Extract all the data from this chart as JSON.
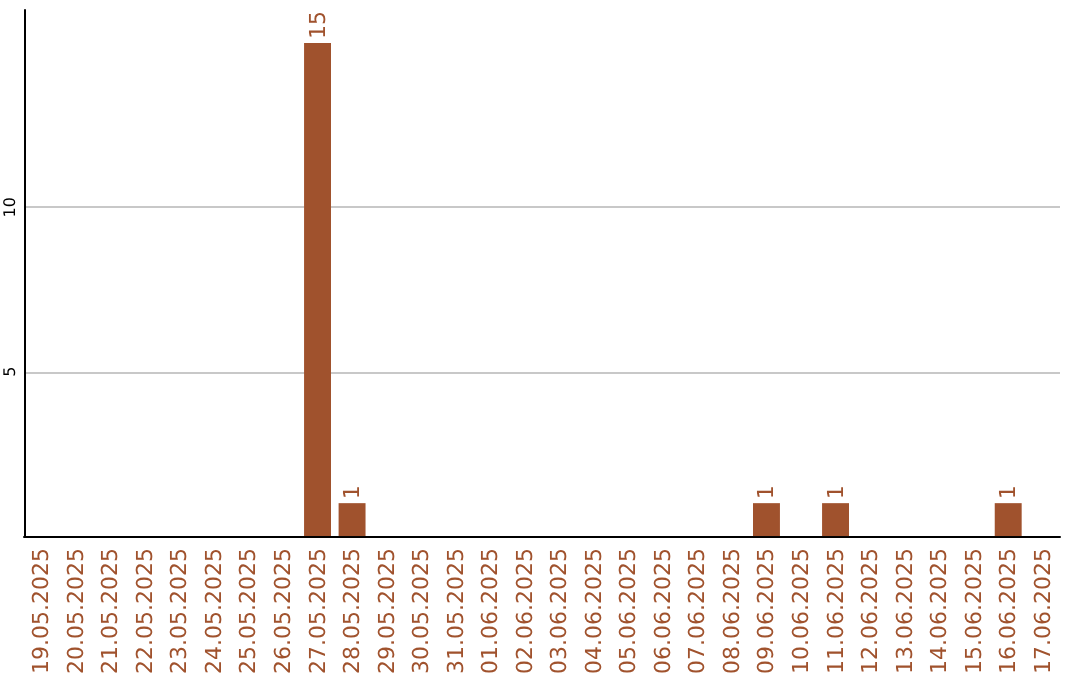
{
  "chart_data": {
    "type": "bar",
    "categories": [
      "19.05.2025",
      "20.05.2025",
      "21.05.2025",
      "22.05.2025",
      "23.05.2025",
      "24.05.2025",
      "25.05.2025",
      "26.05.2025",
      "27.05.2025",
      "28.05.2025",
      "29.05.2025",
      "30.05.2025",
      "31.05.2025",
      "01.06.2025",
      "02.06.2025",
      "03.06.2025",
      "04.06.2025",
      "05.06.2025",
      "06.06.2025",
      "07.06.2025",
      "08.06.2025",
      "09.06.2025",
      "10.06.2025",
      "11.06.2025",
      "12.06.2025",
      "13.06.2025",
      "14.06.2025",
      "15.06.2025",
      "16.06.2025",
      "17.06.2025"
    ],
    "values": [
      0,
      0,
      0,
      0,
      0,
      0,
      0,
      0,
      15,
      1,
      0,
      0,
      0,
      0,
      0,
      0,
      0,
      0,
      0,
      0,
      0,
      1,
      0,
      1,
      0,
      0,
      0,
      0,
      1,
      0
    ],
    "value_labels": [
      null,
      null,
      null,
      null,
      null,
      null,
      null,
      null,
      "15",
      "1",
      null,
      null,
      null,
      null,
      null,
      null,
      null,
      null,
      null,
      null,
      null,
      "1",
      null,
      "1",
      null,
      null,
      null,
      null,
      "1",
      null
    ],
    "color": "#a0522d",
    "ylim": [
      0,
      16
    ],
    "yticks": [
      5,
      10
    ],
    "grid": "y"
  }
}
